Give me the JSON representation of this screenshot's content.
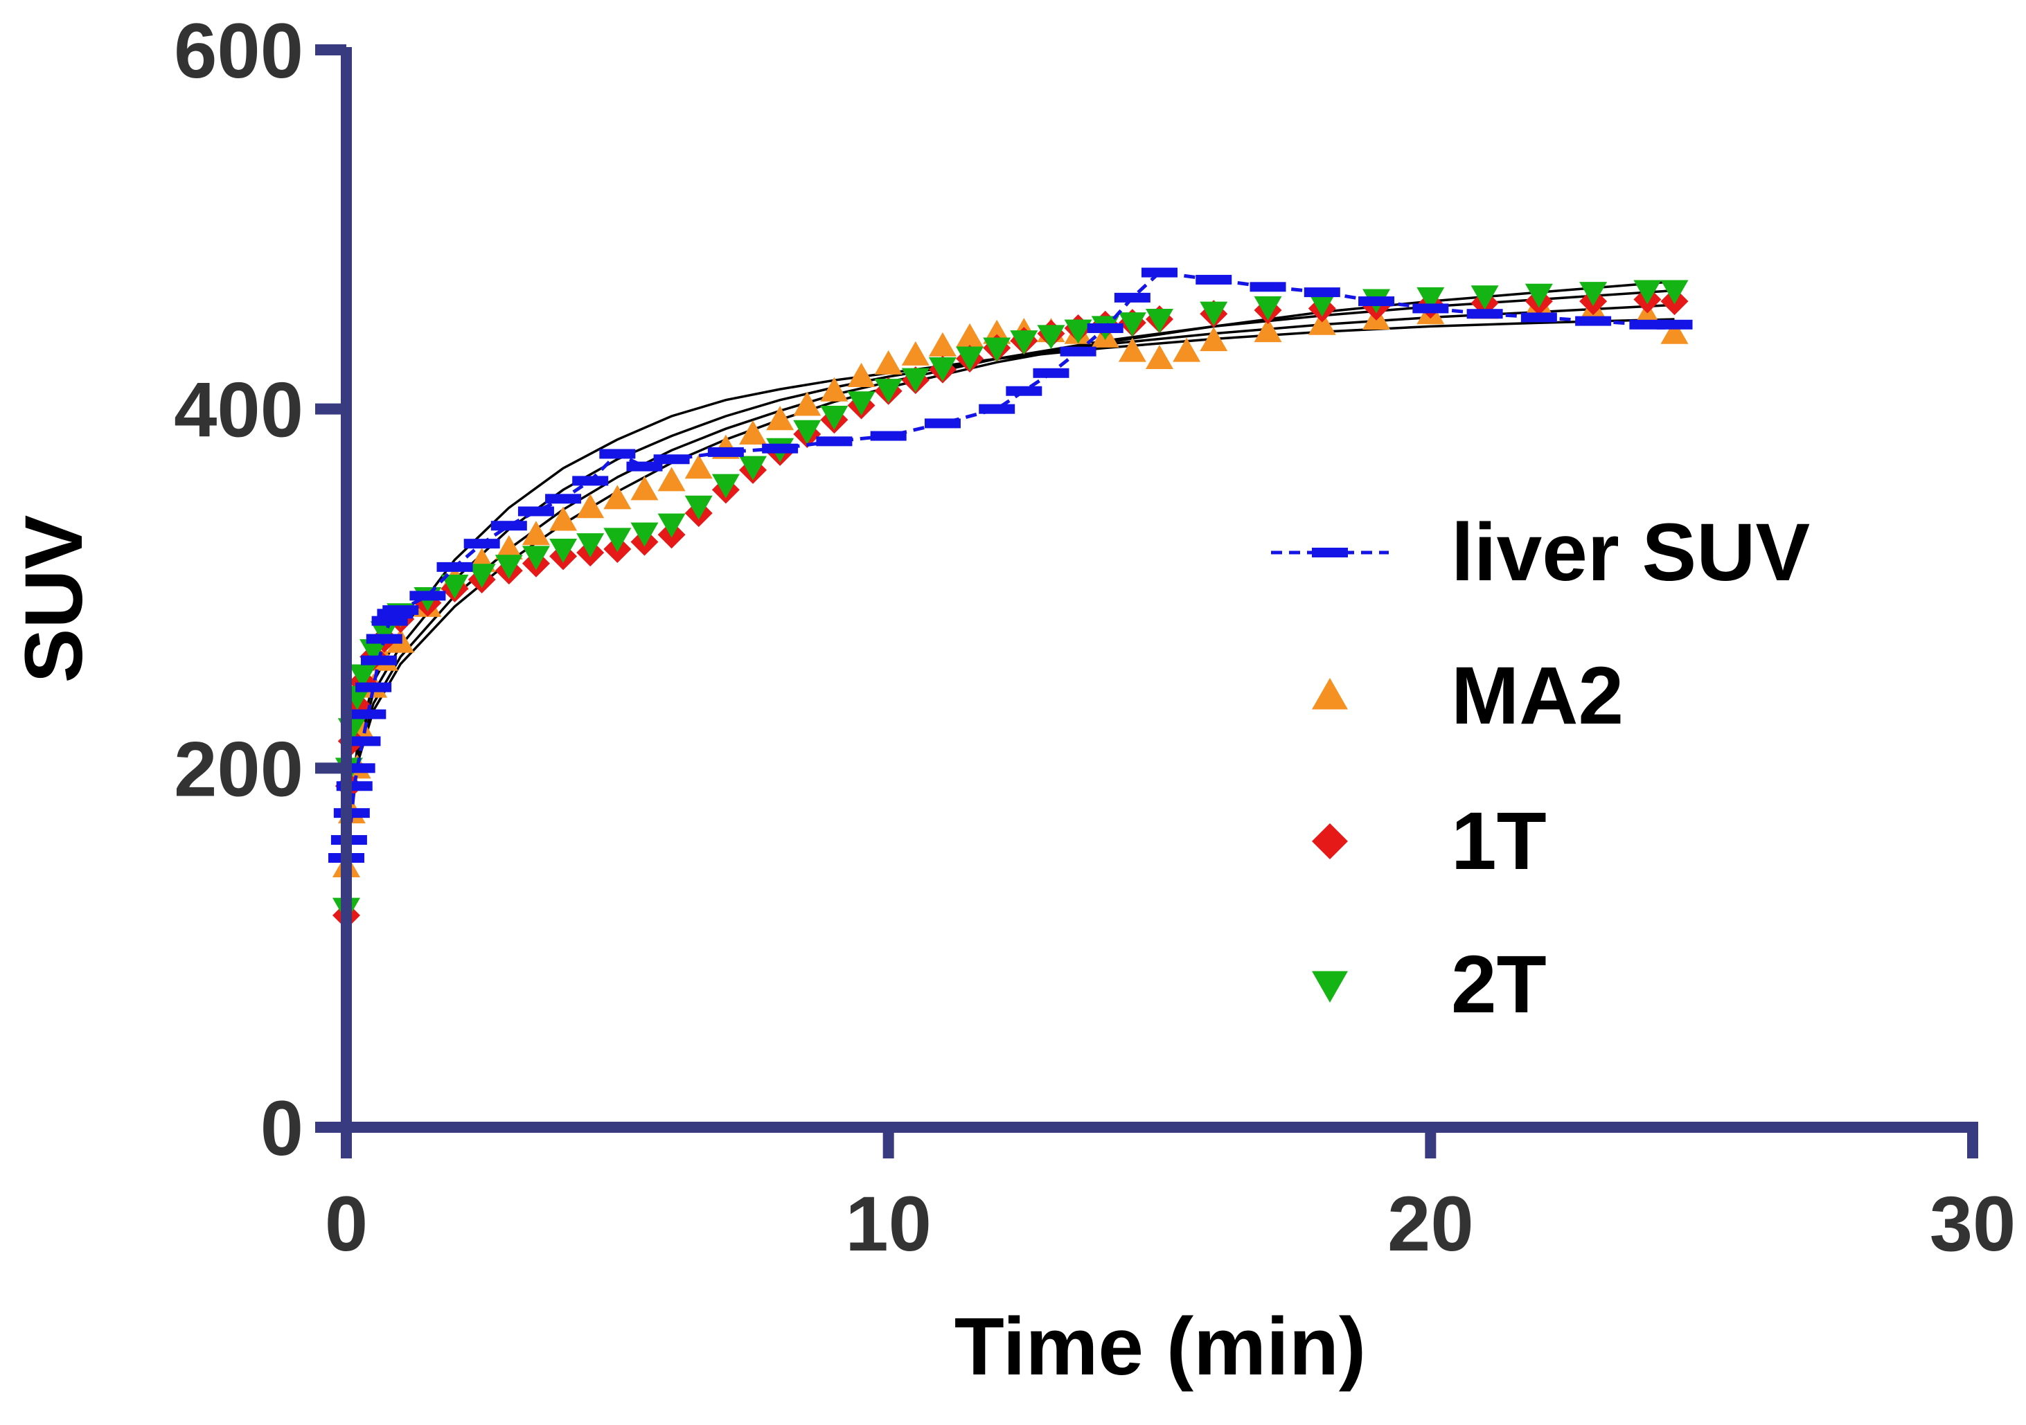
{
  "chart_data": {
    "type": "scatter",
    "title": "",
    "xlabel": "Time (min)",
    "ylabel": "SUV",
    "xlim": [
      0,
      30
    ],
    "ylim": [
      0,
      600
    ],
    "xticks": [
      0,
      10,
      20,
      30
    ],
    "yticks": [
      0,
      200,
      400,
      600
    ],
    "xtick_labels": [
      "0",
      "10",
      "20",
      "30"
    ],
    "ytick_labels": [
      "0",
      "200",
      "400",
      "600"
    ],
    "grid": false,
    "legend_position": "right-center",
    "colors": {
      "axis": "#383b80",
      "text": "#333333",
      "fit": "#000000"
    },
    "series": [
      {
        "name": "liver SUV",
        "marker": "dash",
        "line": "dashed",
        "color": "#1414e6",
        "x": [
          0,
          0.05,
          0.1,
          0.15,
          0.2,
          0.3,
          0.4,
          0.5,
          0.6,
          0.7,
          0.8,
          0.9,
          1,
          1.5,
          2,
          2.5,
          3,
          3.5,
          4,
          4.5,
          5,
          5.5,
          6,
          7,
          8,
          9,
          10,
          11,
          12,
          12.5,
          13,
          13.5,
          14,
          14.5,
          15,
          16,
          17,
          18,
          19,
          20,
          21,
          22,
          23,
          24,
          24.5
        ],
        "y": [
          150,
          160,
          175,
          190,
          200,
          215,
          230,
          245,
          260,
          272,
          282,
          286,
          288,
          296,
          312,
          325,
          335,
          343,
          350,
          360,
          375,
          368,
          372,
          376,
          378,
          382,
          385,
          392,
          400,
          410,
          420,
          432,
          445,
          462,
          476,
          472,
          468,
          465,
          460,
          456,
          453,
          451,
          449,
          447,
          447
        ]
      },
      {
        "name": "MA2",
        "marker": "triangle-up",
        "color": "#f59122",
        "x": [
          0,
          0.1,
          0.2,
          0.3,
          0.5,
          0.7,
          1,
          1.5,
          2,
          2.5,
          3,
          3.5,
          4,
          4.5,
          5,
          5.5,
          6,
          6.5,
          7,
          7.5,
          8,
          8.5,
          9,
          9.5,
          10,
          10.5,
          11,
          11.5,
          12,
          12.5,
          13,
          13.5,
          14,
          14.5,
          15,
          15.5,
          16,
          17,
          18,
          19,
          20,
          21,
          22,
          23,
          24,
          24.5
        ],
        "y": [
          145,
          175,
          200,
          220,
          245,
          260,
          270,
          290,
          305,
          315,
          322,
          330,
          338,
          345,
          350,
          355,
          360,
          367,
          378,
          386,
          394,
          402,
          410,
          418,
          425,
          430,
          435,
          440,
          442,
          443,
          443,
          442,
          440,
          432,
          428,
          432,
          438,
          443,
          447,
          450,
          453,
          456,
          458,
          455,
          452,
          442
        ]
      },
      {
        "name": "1T",
        "marker": "diamond",
        "color": "#e61919",
        "x": [
          0,
          0.05,
          0.1,
          0.2,
          0.3,
          0.5,
          0.7,
          1,
          1.5,
          2,
          2.5,
          3,
          3.5,
          4,
          4.5,
          5,
          5.5,
          6,
          6.5,
          7,
          7.5,
          8,
          8.5,
          9,
          9.5,
          10,
          10.5,
          11,
          11.5,
          12,
          12.5,
          13,
          13.5,
          14,
          14.5,
          15,
          16,
          17,
          18,
          19,
          20,
          21,
          22,
          23,
          24,
          24.5
        ],
        "y": [
          118,
          190,
          215,
          235,
          248,
          262,
          272,
          283,
          292,
          300,
          305,
          310,
          314,
          318,
          320,
          322,
          326,
          330,
          342,
          355,
          366,
          376,
          386,
          394,
          402,
          410,
          416,
          422,
          428,
          434,
          438,
          442,
          445,
          447,
          448,
          450,
          453,
          455,
          456,
          457,
          458,
          459,
          460,
          460,
          461,
          460
        ]
      },
      {
        "name": "2T",
        "marker": "triangle-down",
        "color": "#14b414",
        "x": [
          0,
          0.05,
          0.1,
          0.2,
          0.3,
          0.5,
          0.7,
          1,
          1.5,
          2,
          2.5,
          3,
          3.5,
          4,
          4.5,
          5,
          5.5,
          6,
          6.5,
          7,
          7.5,
          8,
          8.5,
          9,
          9.5,
          10,
          10.5,
          11,
          11.5,
          12,
          12.5,
          13,
          13.5,
          14,
          14.5,
          15,
          16,
          17,
          18,
          19,
          20,
          21,
          22,
          23,
          24,
          24.5
        ],
        "y": [
          122,
          200,
          222,
          240,
          252,
          266,
          276,
          286,
          295,
          302,
          308,
          313,
          318,
          322,
          325,
          328,
          331,
          336,
          346,
          358,
          368,
          378,
          388,
          396,
          404,
          411,
          417,
          423,
          429,
          434,
          438,
          441,
          444,
          446,
          448,
          450,
          454,
          457,
          459,
          461,
          462,
          463,
          464,
          465,
          466,
          466
        ]
      }
    ],
    "fits": [
      {
        "x": [
          0,
          0.2,
          0.5,
          1,
          2,
          3,
          4,
          5,
          6,
          7,
          8,
          9,
          10,
          12,
          14,
          16,
          18,
          20,
          22,
          24.5
        ],
        "y": [
          150,
          212,
          248,
          276,
          316,
          345,
          367,
          383,
          396,
          405,
          411,
          416,
          420,
          428,
          434,
          439,
          443,
          446,
          448,
          450
        ]
      },
      {
        "x": [
          0,
          0.2,
          0.5,
          1,
          2,
          3,
          4,
          5,
          6,
          7,
          8,
          9,
          10,
          12,
          14,
          16,
          18,
          20,
          22,
          24.5
        ],
        "y": [
          150,
          208,
          242,
          268,
          305,
          333,
          355,
          372,
          385,
          396,
          405,
          412,
          418,
          428,
          436,
          442,
          447,
          451,
          454,
          458
        ]
      },
      {
        "x": [
          0,
          0.2,
          0.5,
          1,
          2,
          3,
          4,
          5,
          6,
          7,
          8,
          9,
          10,
          12,
          14,
          16,
          18,
          20,
          22,
          24.5
        ],
        "y": [
          150,
          204,
          236,
          262,
          296,
          322,
          344,
          362,
          377,
          389,
          399,
          408,
          415,
          428,
          438,
          446,
          452,
          457,
          461,
          466
        ]
      },
      {
        "x": [
          0,
          0.2,
          0.5,
          1,
          2,
          3,
          4,
          5,
          6,
          7,
          8,
          9,
          10,
          12,
          14,
          16,
          18,
          20,
          22,
          24.5
        ],
        "y": [
          150,
          202,
          232,
          258,
          290,
          315,
          336,
          354,
          370,
          383,
          394,
          404,
          412,
          426,
          437,
          446,
          454,
          460,
          465,
          471
        ]
      }
    ]
  }
}
